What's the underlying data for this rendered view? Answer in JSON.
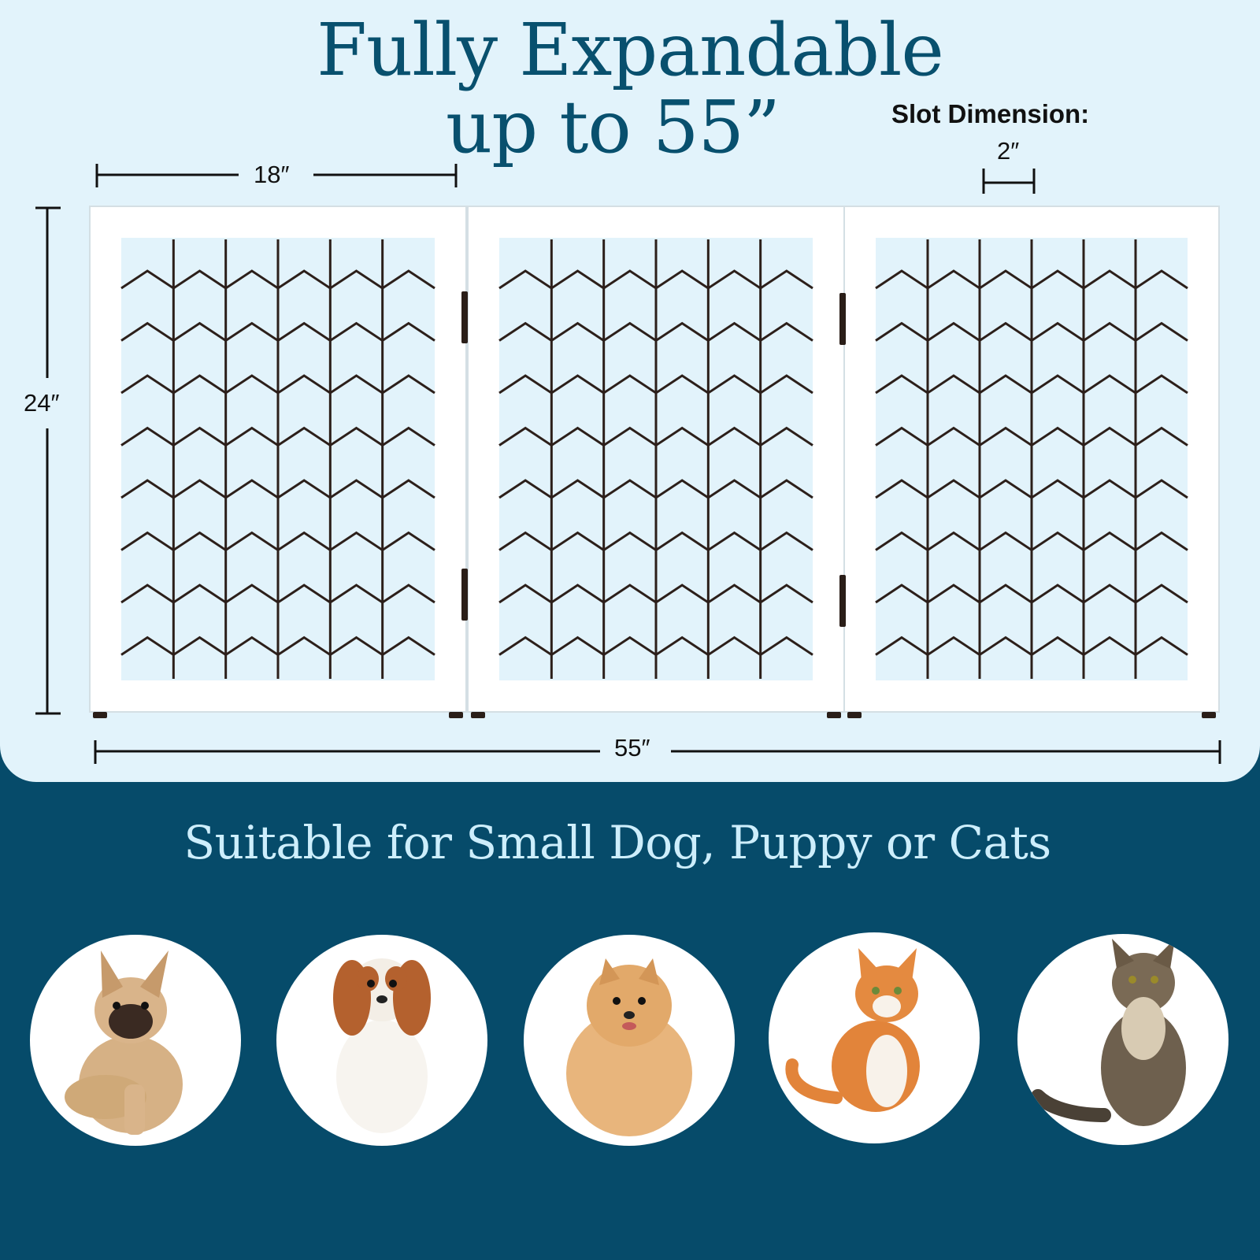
{
  "header": {
    "title_line1": "Fully Expandable",
    "title_line2": "up to 55”",
    "slot_title": "Slot Dimension:",
    "slot_value": "2″"
  },
  "dimensions": {
    "panel_width": "18″",
    "height": "24″",
    "total_width": "55″"
  },
  "gate": {
    "panel_count": 3,
    "frame_color": "#ffffff",
    "wire_color": "#2c1f1a",
    "hinge_color": "#2a1e18"
  },
  "subtitle": "Suitable for Small Dog, Puppy or Cats",
  "pets": [
    {
      "name": "french-bulldog",
      "coat": "#d9b48a"
    },
    {
      "name": "cavalier-spaniel",
      "coat": "#b4612e"
    },
    {
      "name": "pomeranian",
      "coat": "#e2a96a"
    },
    {
      "name": "orange-white-cat",
      "coat": "#e2843a"
    },
    {
      "name": "maine-coon-cat",
      "coat": "#6e604e"
    }
  ],
  "colors": {
    "panel_background": "#e2f3fb",
    "dark_background": "#064b6a",
    "title_color": "#08506e",
    "subtitle_color": "#cdeefc"
  }
}
